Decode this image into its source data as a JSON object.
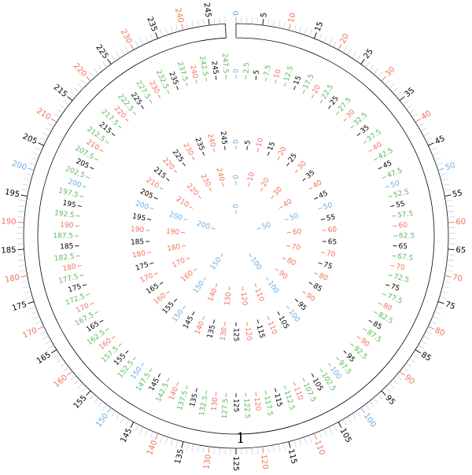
{
  "ideogram": {
    "label": "1"
  },
  "rings": [
    {
      "groups": [
        {
          "color": "#6aaee0",
          "labels": [
            0,
            50,
            100,
            150,
            200
          ]
        },
        {
          "color": "#f0735a",
          "labels": [
            10,
            20,
            30,
            40,
            60,
            70,
            80,
            90,
            110,
            120,
            130,
            140,
            160,
            170,
            180,
            190,
            210,
            220,
            230,
            240
          ]
        },
        {
          "color": "#000000",
          "labels": [
            5,
            15,
            25,
            35,
            45,
            55,
            65,
            75,
            85,
            95,
            105,
            115,
            125,
            135,
            145,
            155,
            165,
            175,
            185,
            195,
            205,
            215,
            225,
            235,
            245
          ]
        }
      ]
    },
    {
      "groups": [
        {
          "color": "#6aaee0",
          "labels": [
            0,
            50,
            100,
            150,
            200
          ]
        },
        {
          "color": "#f0735a",
          "labels": [
            10,
            20,
            30,
            40,
            60,
            70,
            80,
            90,
            110,
            120,
            130,
            140,
            160,
            170,
            180,
            190,
            210,
            220,
            230,
            240
          ]
        },
        {
          "color": "#000000",
          "labels": [
            5,
            15,
            25,
            35,
            45,
            55,
            65,
            75,
            85,
            95,
            105,
            115,
            125,
            135,
            145,
            155,
            165,
            175,
            185,
            195,
            205,
            215,
            225,
            235,
            245
          ]
        },
        {
          "color": "#5cb85c",
          "labels": [
            2.5,
            7.5,
            12.5,
            17.5,
            22.5,
            27.5,
            32.5,
            37.5,
            42.5,
            47.5,
            52.5,
            57.5,
            62.5,
            67.5,
            72.5,
            77.5,
            82.5,
            87.5,
            92.5,
            97.5,
            102.5,
            107.5,
            112.5,
            117.5,
            122.5,
            127.5,
            132.5,
            137.5,
            142.5,
            147.5,
            152.5,
            157.5,
            162.5,
            167.5,
            172.5,
            177.5,
            182.5,
            187.5,
            192.5,
            197.5,
            202.5,
            207.5,
            212.5,
            217.5,
            222.5,
            227.5,
            232.5,
            237.5,
            242.5,
            247.5
          ]
        }
      ]
    },
    {
      "groups": [
        {
          "color": "#6aaee0",
          "labels": [
            0,
            50,
            100,
            150,
            200
          ]
        },
        {
          "color": "#f0735a",
          "labels": [
            10,
            20,
            30,
            40,
            60,
            70,
            80,
            90,
            110,
            120,
            130,
            140,
            160,
            170,
            180,
            190,
            210,
            220,
            230,
            240
          ]
        },
        {
          "color": "#000000",
          "labels": [
            5,
            15,
            25,
            35,
            45,
            55,
            65,
            75,
            85,
            95,
            105,
            115,
            125,
            135,
            145,
            155,
            165,
            175,
            185,
            195,
            205,
            215,
            225,
            235,
            245
          ]
        }
      ]
    },
    {
      "groups": [
        {
          "color": "#6aaee0",
          "labels": [
            0,
            50,
            100,
            150,
            200
          ]
        },
        {
          "color": "#f0735a",
          "labels": [
            10,
            20,
            30,
            40,
            60,
            70,
            80,
            90,
            110,
            120,
            130,
            140,
            160,
            170,
            180,
            190,
            210,
            220,
            230,
            240
          ]
        }
      ]
    },
    {
      "groups": [
        {
          "color": "#6aaee0",
          "labels": [
            0,
            50,
            100,
            150,
            200
          ]
        }
      ]
    }
  ]
}
